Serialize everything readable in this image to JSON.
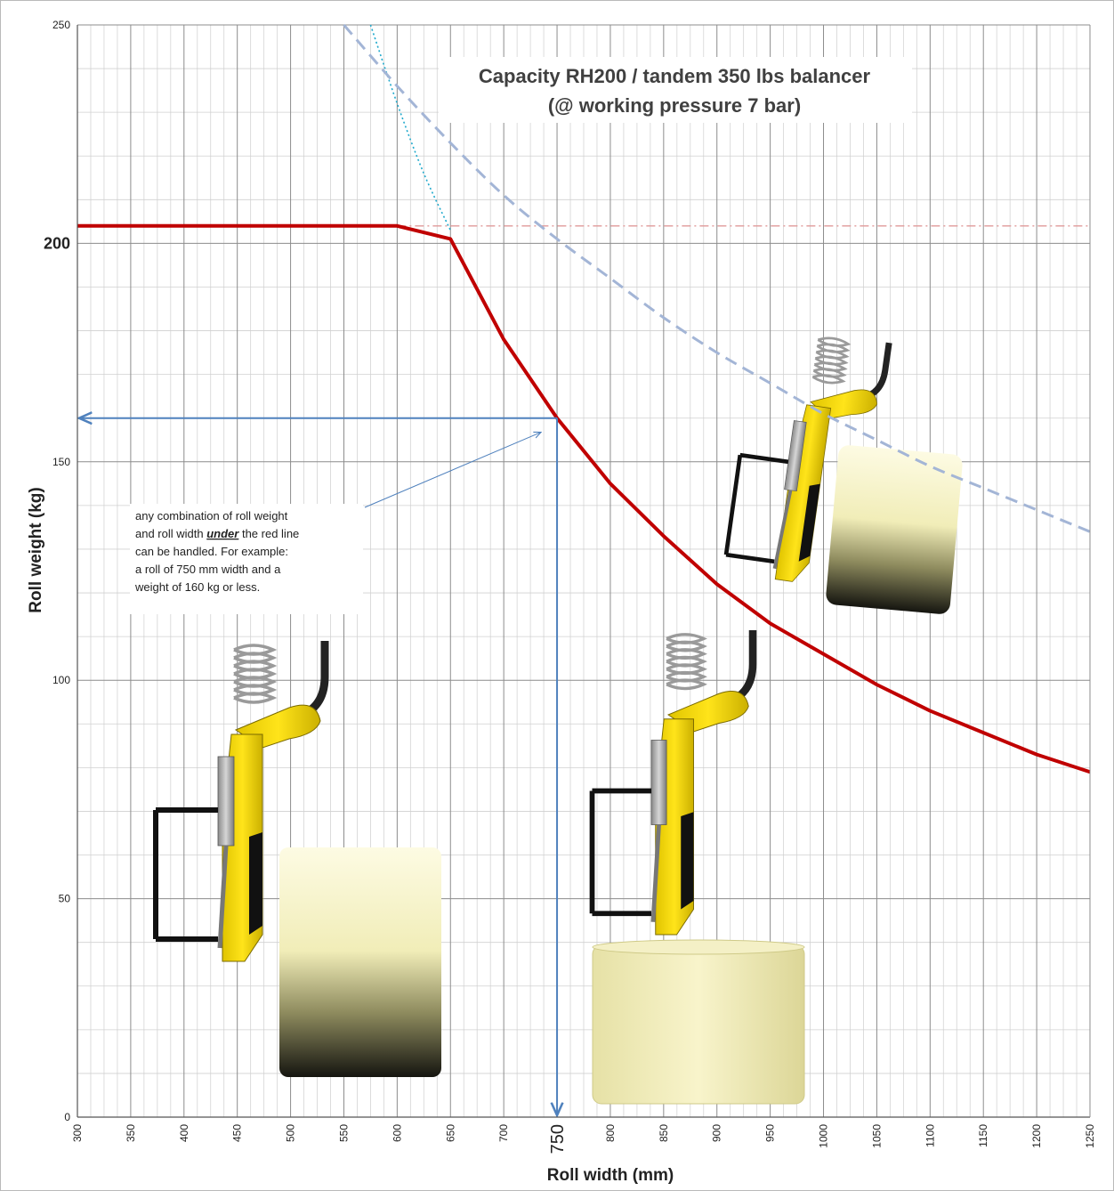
{
  "chart_data": {
    "type": "line",
    "title_line1": "Capacity RH200 / tandem 350 lbs balancer",
    "title_line2": "(@ working pressure  7 bar)",
    "xlabel": "Roll width (mm)",
    "ylabel": "Roll weight (kg)",
    "xlim": [
      300,
      1250
    ],
    "ylim": [
      0,
      250
    ],
    "x_ticks": [
      300,
      350,
      400,
      450,
      500,
      550,
      600,
      650,
      700,
      750,
      800,
      850,
      900,
      950,
      1000,
      1050,
      1100,
      1150,
      1200,
      1250
    ],
    "x_tick_labels": [
      "300",
      "350",
      "400",
      "450",
      "500",
      "550",
      "600",
      "650",
      "700",
      "750",
      "800",
      "850",
      "900",
      "950",
      "1000",
      "1050",
      "1100",
      "1150",
      "1200",
      "1250"
    ],
    "y_ticks": [
      0,
      50,
      100,
      150,
      200,
      250
    ],
    "y_tick_labels": [
      "0",
      "50",
      "100",
      "150",
      "200",
      "250"
    ],
    "highlight_x_tick": "750",
    "highlight_y_tick": "200",
    "grid": true,
    "series": [
      {
        "style": "solid",
        "color": "#c00000",
        "x": [
          300,
          600,
          650,
          700,
          750,
          800,
          850,
          900,
          950,
          1000,
          1050,
          1100,
          1150,
          1200,
          1250
        ],
        "y": [
          204,
          204,
          201,
          178,
          160,
          145,
          133,
          122,
          113,
          106,
          99,
          93,
          88,
          83,
          79
        ]
      },
      {
        "style": "dashed",
        "color": "#a3b5d6",
        "x": [
          550,
          600,
          650,
          700,
          750,
          800,
          850,
          900,
          950,
          1000,
          1050,
          1100,
          1150,
          1200,
          1250
        ],
        "y": [
          250,
          236,
          223,
          211,
          201,
          192,
          183,
          175,
          168,
          161,
          155,
          149,
          144,
          139,
          134
        ]
      },
      {
        "style": "dotted",
        "color": "#1fa9cc",
        "x": [
          575,
          600,
          625,
          650
        ],
        "y": [
          250,
          232,
          216,
          203
        ]
      },
      {
        "style": "dash-dot",
        "color": "#e09a9a",
        "x": [
          600,
          1250
        ],
        "y": [
          204,
          204
        ]
      }
    ],
    "reference_point": {
      "x": 750,
      "y": 160,
      "color": "#4f81bd"
    },
    "annotation": {
      "line1": "any combination of roll weight",
      "line2_pre": "and roll width ",
      "line2_em": "under",
      "line2_post": " the red line",
      "line3": "can be handled. For example:",
      "line4": "a roll of 750 mm width and a",
      "line5": "weight of 160 kg or less.",
      "target": {
        "x": 740,
        "y": 158
      }
    },
    "images": [
      {
        "name": "balancer-device-left",
        "color": "#f2d500"
      },
      {
        "name": "balancer-device-center",
        "color": "#f2d500"
      },
      {
        "name": "balancer-device-right",
        "color": "#f2d500"
      }
    ]
  }
}
